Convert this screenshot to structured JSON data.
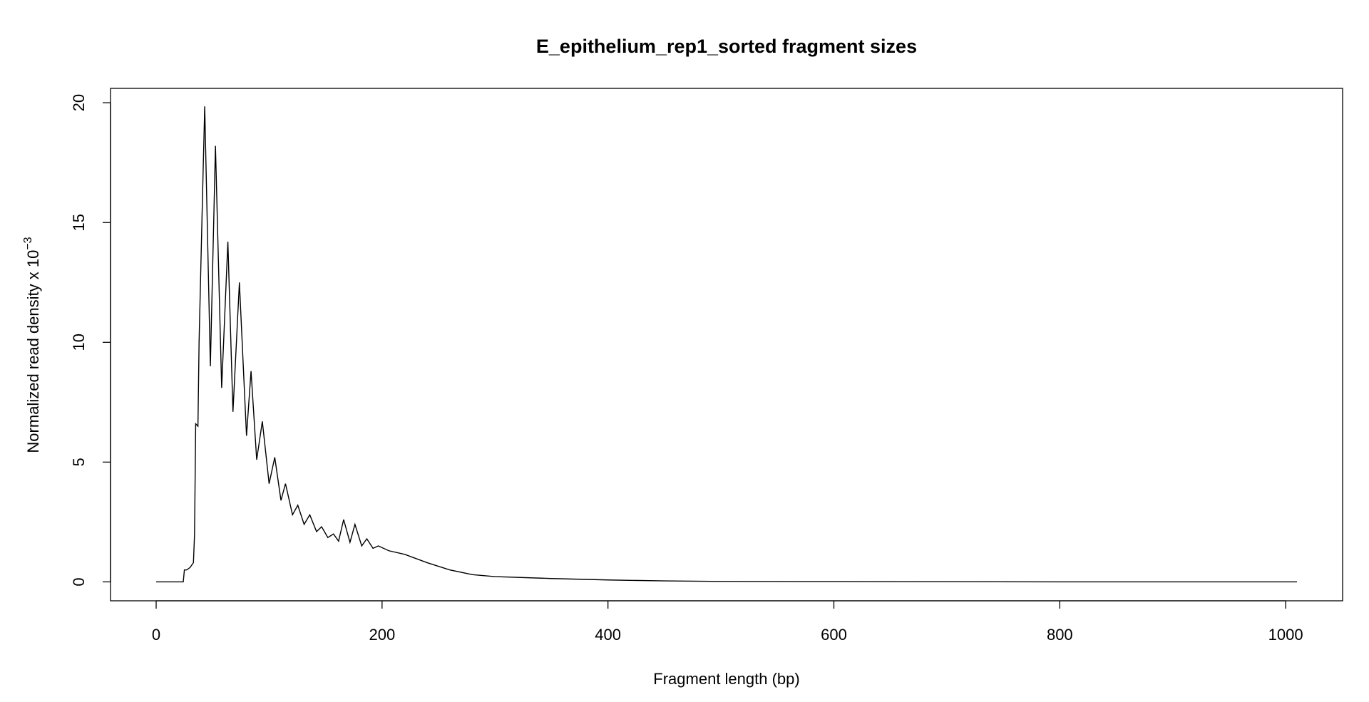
{
  "chart_data": {
    "type": "line",
    "title": "E_epithelium_rep1_sorted fragment sizes",
    "x_label": "Fragment length (bp)",
    "y_label": "Normalized read density x 10",
    "y_label_exponent": "−3",
    "x": [
      0,
      24,
      25,
      27,
      30,
      33,
      34,
      35,
      37,
      38,
      41,
      43,
      48,
      52.5,
      58,
      63.5,
      68,
      73.7,
      80,
      84,
      89,
      94,
      100,
      105,
      110.5,
      114.5,
      120.7,
      125.4,
      131,
      136,
      142,
      146.5,
      152,
      157,
      161.5,
      166,
      171.6,
      176,
      182,
      186.5,
      192,
      196.7,
      206,
      220,
      240,
      260,
      280,
      300,
      350,
      400,
      450,
      500,
      600,
      800,
      1010
    ],
    "series": [
      {
        "name": "E_epithelium_rep1_sorted",
        "color": "#000000",
        "values": [
          0,
          0,
          0.5,
          0.5,
          0.6,
          0.8,
          2,
          6.6,
          6.5,
          10,
          16,
          19.85,
          9.0,
          18.2,
          8.1,
          14.2,
          7.1,
          12.5,
          6.1,
          8.8,
          5.1,
          6.7,
          4.1,
          5.2,
          3.4,
          4.1,
          2.8,
          3.2,
          2.4,
          2.8,
          2.1,
          2.3,
          1.85,
          2.0,
          1.7,
          2.6,
          1.65,
          2.4,
          1.5,
          1.8,
          1.4,
          1.5,
          1.3,
          1.15,
          0.8,
          0.5,
          0.3,
          0.22,
          0.14,
          0.08,
          0.04,
          0.02,
          0.01,
          0,
          0
        ]
      }
    ],
    "xlim": [
      -40.4,
      1050.4
    ],
    "xticks": [
      0,
      200,
      400,
      600,
      800,
      1000
    ],
    "ylim": [
      -0.79,
      20.6
    ],
    "yticks": [
      0,
      5,
      10,
      15,
      20
    ],
    "grid": false
  }
}
